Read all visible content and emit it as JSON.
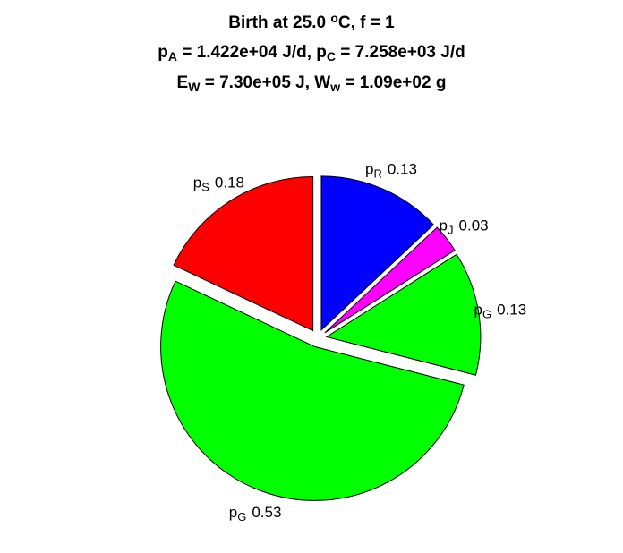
{
  "chart_data": {
    "type": "pie",
    "title": [
      [
        {
          "text": "Birth at 25.0 "
        },
        {
          "text": "o",
          "sup": true
        },
        {
          "text": "C, f = 1"
        }
      ],
      [
        {
          "text": "p"
        },
        {
          "text": "A",
          "sub": true
        },
        {
          "text": " = 1.422e+04 J/d, p"
        },
        {
          "text": "C",
          "sub": true
        },
        {
          "text": " = 7.258e+03 J/d"
        }
      ],
      [
        {
          "text": "E"
        },
        {
          "text": "W",
          "sub": true
        },
        {
          "text": " = 7.30e+05 J, W"
        },
        {
          "text": "w",
          "sub": true
        },
        {
          "text": " = 1.09e+02 g"
        }
      ]
    ],
    "categories": [
      {
        "base": "p",
        "sub": "R"
      },
      {
        "base": "p",
        "sub": "J"
      },
      {
        "base": "p",
        "sub": "G"
      },
      {
        "base": "p",
        "sub": "G"
      },
      {
        "base": "p",
        "sub": "S"
      }
    ],
    "values": [
      0.13,
      0.03,
      0.13,
      0.53,
      0.18
    ],
    "colors": [
      "#0000ff",
      "#ff00ff",
      "#00ff00",
      "#00ff00",
      "#ff0000"
    ],
    "exploded": true
  }
}
